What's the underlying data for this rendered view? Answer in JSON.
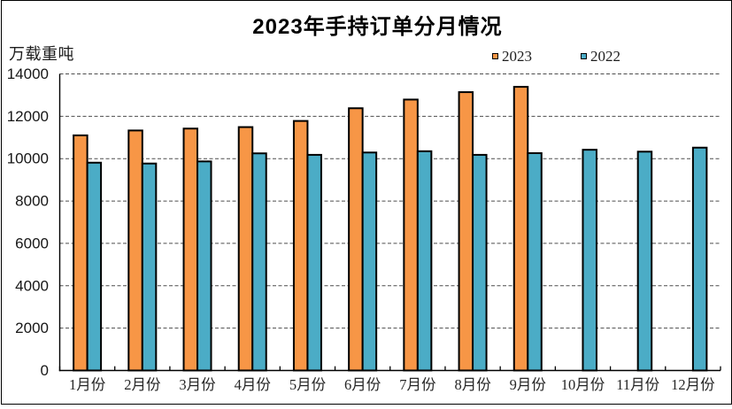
{
  "frame": {
    "background_color": "#ffffff",
    "border_color": "#000000"
  },
  "chart_data": {
    "type": "bar",
    "title": "2023年手持订单分月情况",
    "unit_label": "万载重吨",
    "xlabel": "",
    "ylabel": "万载重吨",
    "categories": [
      "1月份",
      "2月份",
      "3月份",
      "4月份",
      "5月份",
      "6月份",
      "7月份",
      "8月份",
      "9月份",
      "10月份",
      "11月份",
      "12月份"
    ],
    "series": [
      {
        "name": "2023",
        "color": "#F79646",
        "values": [
          11100,
          11330,
          11420,
          11490,
          11780,
          12380,
          12790,
          13140,
          13390,
          null,
          null,
          null
        ]
      },
      {
        "name": "2022",
        "color": "#4BACC6",
        "values": [
          9810,
          9770,
          9870,
          10250,
          10180,
          10290,
          10350,
          10180,
          10260,
          10420,
          10330,
          10520
        ]
      }
    ],
    "ylim": [
      0,
      14000
    ],
    "ytick_step": 2000,
    "yticks": [
      0,
      2000,
      4000,
      6000,
      8000,
      10000,
      12000,
      14000
    ],
    "grid": "horizontal-dashed",
    "gridline_color": "#4d4d4d",
    "axis_color": "#000000",
    "bar_border_color": "#000000",
    "legend_position": "top-right",
    "legend": [
      "2023",
      "2022"
    ]
  }
}
